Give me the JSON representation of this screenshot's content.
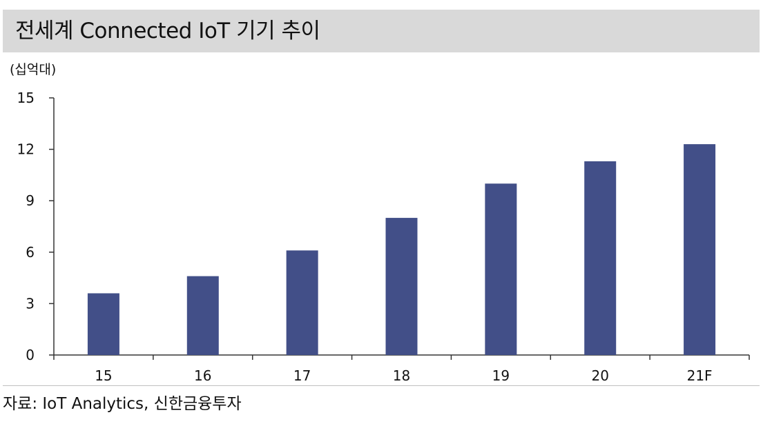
{
  "header": {
    "title": "전세계 Connected IoT 기기 추이"
  },
  "footer": {
    "source": "자료: IoT Analytics, 신한금융투자"
  },
  "colors": {
    "bar": "#424f88",
    "title_bg": "#d9d9d9"
  },
  "chart_data": {
    "type": "bar",
    "title": "전세계 Connected IoT 기기 추이",
    "unit_label": "(십억대)",
    "xlabel": "",
    "ylabel": "",
    "categories": [
      "15",
      "16",
      "17",
      "18",
      "19",
      "20",
      "21F"
    ],
    "values": [
      3.6,
      4.6,
      6.1,
      8.0,
      10.0,
      11.3,
      12.3
    ],
    "ylim": [
      0,
      15
    ],
    "yticks": [
      0,
      3,
      6,
      9,
      12,
      15
    ],
    "grid": false,
    "legend": "none"
  }
}
